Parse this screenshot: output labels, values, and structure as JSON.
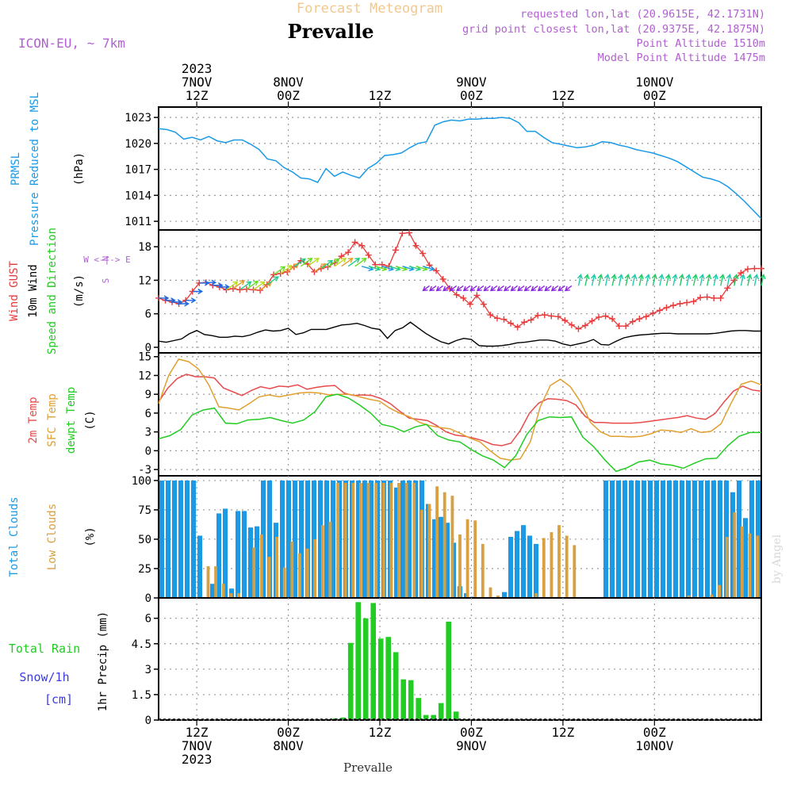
{
  "header": {
    "product": "Forecast Meteogram",
    "station": "Prevalle",
    "model": "ICON-EU, ~ 7km",
    "requested": "requested lon,lat (20.9615E, 42.1731N)",
    "gridpoint": "grid point closest lon,lat (20.9375E, 42.1875N)",
    "point_alt": "Point Altitude 1510m",
    "model_alt": "Model Point Altitude 1475m",
    "credit": "by Angel",
    "footer_station": "Prevalle"
  },
  "colors": {
    "pressure": "#1a9ae6",
    "gust": "#e83a3a",
    "wind": "#000000",
    "t2m": "#e84a4a",
    "sfc": "#e0a030",
    "dew": "#22cc22",
    "total_cloud": "#1a9ae6",
    "low_cloud": "#d8a040",
    "rain": "#22cc22",
    "snow": "#3a3ae8",
    "purple": "#b060d0",
    "ylabel": "#e0c080"
  },
  "chart_data": {
    "type": "meteogram",
    "time_axis": {
      "hours_from_start": "hourly from 07 Nov 2023 07Z to 10 Nov 2023 13Z (79 steps)",
      "top_ticks": [
        {
          "hour": 5,
          "line1": "2023",
          "line2": "7NOV",
          "line3": "12Z"
        },
        {
          "hour": 17,
          "line1": "",
          "line2": "8NOV",
          "line3": "00Z"
        },
        {
          "hour": 29,
          "line1": "",
          "line2": "",
          "line3": "12Z"
        },
        {
          "hour": 41,
          "line1": "",
          "line2": "9NOV",
          "line3": "00Z"
        },
        {
          "hour": 53,
          "line1": "",
          "line2": "",
          "line3": "12Z"
        },
        {
          "hour": 65,
          "line1": "",
          "line2": "10NOV",
          "line3": "00Z"
        }
      ],
      "bottom_ticks": [
        {
          "hour": 5,
          "line1": "12Z",
          "line2": "7NOV",
          "line3": "2023"
        },
        {
          "hour": 17,
          "line1": "00Z",
          "line2": "8NOV",
          "line3": ""
        },
        {
          "hour": 29,
          "line1": "12Z",
          "line2": "",
          "line3": ""
        },
        {
          "hour": 41,
          "line1": "00Z",
          "line2": "9NOV",
          "line3": ""
        },
        {
          "hour": 53,
          "line1": "12Z",
          "line2": "",
          "line3": ""
        },
        {
          "hour": 65,
          "line1": "00Z",
          "line2": "10NOV",
          "line3": ""
        }
      ],
      "start_hour": 0,
      "end_hour": 79
    },
    "panels": [
      {
        "id": "pressure",
        "ylim": [
          1010,
          1024.2
        ],
        "yticks": [
          1011,
          1014,
          1017,
          1020,
          1023
        ],
        "labels": [
          "PRMSL",
          "Pressure Reduced to MSL",
          "(hPa)"
        ],
        "series": [
          {
            "name": "PRMSL",
            "values": [
              1021.7,
              1021.6,
              1021.3,
              1020.5,
              1020.7,
              1020.4,
              1020.8,
              1020.3,
              1020.1,
              1020.4,
              1020.4,
              1019.9,
              1019.3,
              1018.2,
              1018,
              1017.2,
              1016.7,
              1016,
              1015.9,
              1015.5,
              1017.1,
              1016.2,
              1016.7,
              1016.3,
              1016,
              1017.1,
              1017.7,
              1018.6,
              1018.7,
              1018.9,
              1019.5,
              1020,
              1020.2,
              1022.1,
              1022.5,
              1022.7,
              1022.6,
              1022.8,
              1022.8,
              1022.9,
              1022.9,
              1023,
              1022.9,
              1022.4,
              1021.4,
              1021.4,
              1020.7,
              1020.1,
              1019.9,
              1019.7,
              1019.5,
              1019.6,
              1019.8,
              1020.2,
              1020.1,
              1019.8,
              1019.6,
              1019.3,
              1019.1,
              1018.9,
              1018.6,
              1018.3,
              1017.9,
              1017.3,
              1016.7,
              1016.1,
              1015.9,
              1015.6,
              1015,
              1014.2,
              1013.3,
              1012.3,
              1011.3
            ]
          }
        ]
      },
      {
        "id": "wind",
        "ylim": [
          -1,
          21
        ],
        "yticks": [
          0,
          6,
          12,
          18
        ],
        "labels": [
          "Wind GUST",
          "10m Wind",
          "Speed and Direction",
          "(m/s)"
        ],
        "compass": [
          "N",
          "W <-|-> E",
          "S"
        ],
        "series": [
          {
            "name": "Wind GUST",
            "values": [
              8.8,
              8.4,
              8.1,
              7.8,
              8.4,
              10,
              11.5,
              11.6,
              11.1,
              10.8,
              10.3,
              10.5,
              10.3,
              10.4,
              10.3,
              10.2,
              11.2,
              13,
              13.2,
              13.5,
              14.4,
              15.5,
              14.9,
              13.5,
              14.1,
              14.4,
              15.1,
              16.3,
              17,
              18.8,
              18.2,
              16.5,
              14.8,
              14.8,
              14.5,
              17.4,
              20.4,
              20.5,
              18.2,
              16.8,
              14.7,
              13.7,
              12.2,
              10.5,
              9.4,
              8.8,
              7.7,
              9.3,
              7.7,
              5.8,
              5.2,
              5,
              4.3,
              3.6,
              4.5,
              4.9,
              5.7,
              5.8,
              5.6,
              5.5,
              4.8,
              4,
              3.3,
              3.9,
              4.7,
              5.4,
              5.6,
              5.1,
              3.8,
              3.8,
              4.6,
              5.1,
              5.5,
              6.1,
              6.6,
              7.1,
              7.5,
              7.8,
              8,
              8.2,
              8.9,
              9,
              8.8,
              8.8,
              10.6,
              12,
              13.3,
              14,
              14.1,
              14.1
            ]
          },
          {
            "name": "10m Wind",
            "values": [
              1.1,
              0.9,
              1.2,
              1.5,
              2.4,
              3,
              2.3,
              2.1,
              1.8,
              1.8,
              2,
              1.9,
              2.2,
              2.7,
              3.1,
              2.9,
              3,
              3.4,
              2.3,
              2.6,
              3.2,
              3.2,
              3.2,
              3.6,
              4,
              4.1,
              4.3,
              3.9,
              3.4,
              3.2,
              1.6,
              3,
              3.5,
              4.5,
              3.5,
              2.5,
              1.7,
              1,
              0.6,
              1.2,
              1.6,
              1.4,
              0.3,
              0.2,
              0.2,
              0.3,
              0.5,
              0.8,
              0.9,
              1.1,
              1.3,
              1.3,
              1.1,
              0.6,
              0.3,
              0.6,
              0.9,
              1.4,
              0.5,
              0.4,
              1.1,
              1.7,
              2,
              2.2,
              2.3,
              2.4,
              2.5,
              2.5,
              2.4,
              2.4,
              2.4,
              2.4,
              2.4,
              2.5,
              2.7,
              2.9,
              3,
              3,
              2.9,
              2.9
            ]
          }
        ]
      },
      {
        "id": "temp",
        "ylim": [
          -4,
          15.6
        ],
        "yticks": [
          -3,
          0,
          3,
          6,
          9,
          12,
          15
        ],
        "labels": [
          "2m Temp",
          "SFC Temp",
          "dewpt Temp",
          "(C)"
        ],
        "series": [
          {
            "name": "2m Temp",
            "values": [
              7.8,
              10,
              11.5,
              12.2,
              11.8,
              11.8,
              11.6,
              10,
              9.4,
              8.8,
              9.6,
              10.2,
              9.9,
              10.3,
              10.2,
              10.5,
              9.8,
              10.1,
              10.3,
              10.4,
              9.2,
              8.8,
              8.9,
              8.8,
              8.3,
              7.5,
              6.3,
              5.2,
              5,
              4.8,
              4,
              3,
              2.5,
              2.3,
              2,
              1.6,
              1,
              0.8,
              1.2,
              3.2,
              6,
              7.6,
              8.3,
              8.2,
              8,
              7.3,
              5.5,
              4.5,
              4.5,
              4.4,
              4.4,
              4.4,
              4.5,
              4.7,
              4.9,
              5.1,
              5.3,
              5.6,
              5.2,
              5,
              5.9,
              7.8,
              9.5,
              10.3,
              9.7,
              9.5
            ]
          },
          {
            "name": "SFC Temp",
            "values": [
              7.5,
              12,
              14.6,
              14.2,
              13,
              10.5,
              7,
              6.8,
              6.5,
              7.5,
              8.6,
              8.9,
              8.6,
              8.9,
              9.2,
              9.3,
              9.2,
              8.9,
              9,
              9,
              8.6,
              8.2,
              7.9,
              6.8,
              6,
              5.4,
              4.5,
              4,
              3.7,
              3.5,
              2.8,
              2,
              1.4,
              0,
              -1.2,
              -1.5,
              -1.3,
              1.4,
              7,
              10.4,
              11.4,
              10.2,
              7.8,
              4.5,
              3,
              2.3,
              2.3,
              2.2,
              2.3,
              2.7,
              3.3,
              3.2,
              2.9,
              3.5,
              2.9,
              3.1,
              4.3,
              7.6,
              10.6,
              11.1,
              10.5
            ]
          },
          {
            "name": "dewpt Temp",
            "values": [
              1.9,
              2.4,
              3.4,
              5.7,
              6.5,
              6.8,
              4.4,
              4.3,
              4.9,
              5,
              5.3,
              4.8,
              4.4,
              4.9,
              6.2,
              8.6,
              9,
              8.4,
              7.3,
              6,
              4.2,
              3.8,
              3,
              3.8,
              4.2,
              2.4,
              1.7,
              1.4,
              0.2,
              -0.8,
              -1.5,
              -2.7,
              -0.8,
              2.6,
              4.8,
              5.4,
              5.3,
              5.4,
              2.2,
              0.6,
              -1.5,
              -3.3,
              -2.7,
              -1.8,
              -1.5,
              -2.1,
              -2.3,
              -2.8,
              -2,
              -1.3,
              -1.2,
              0.8,
              2.3,
              2.9,
              2.9
            ]
          }
        ]
      },
      {
        "id": "clouds",
        "ylim": [
          0,
          104
        ],
        "yticks": [
          0,
          25,
          50,
          75,
          100
        ],
        "labels": [
          "Total Clouds",
          "Low Clouds",
          "(%)"
        ],
        "series": [
          {
            "name": "Total Clouds",
            "values": [
              100,
              100,
              100,
              100,
              100,
              100,
              53,
              0,
              12,
              72,
              76,
              8,
              74,
              74,
              60,
              61,
              100,
              100,
              64,
              100,
              100,
              100,
              100,
              100,
              100,
              100,
              100,
              100,
              100,
              100,
              100,
              100,
              100,
              100,
              100,
              100,
              100,
              94,
              100,
              100,
              100,
              100,
              80,
              67,
              69,
              64,
              47,
              10,
              4,
              1,
              0,
              0,
              0,
              0,
              5,
              52,
              57,
              62,
              53,
              46,
              0,
              0,
              0,
              0,
              0,
              0,
              0,
              0,
              0,
              0,
              100,
              100,
              100,
              100,
              100,
              100,
              100,
              100,
              100,
              100,
              100,
              100,
              100,
              100,
              100,
              100,
              100,
              100,
              100,
              100,
              90,
              100,
              68,
              100,
              100
            ]
          },
          {
            "name": "Low Clouds",
            "values": [
              0,
              0,
              0,
              0,
              0,
              0,
              27,
              27,
              12,
              4,
              4,
              0,
              43,
              54,
              35,
              52,
              26,
              48,
              38,
              42,
              50,
              62,
              65,
              98,
              98,
              98,
              98,
              98,
              98,
              98,
              98,
              98,
              98,
              98,
              75,
              80,
              95,
              90,
              87,
              54,
              67,
              66,
              46,
              9,
              2,
              0,
              0,
              0,
              0,
              4,
              51,
              56,
              62,
              53,
              45,
              0,
              0,
              0,
              0,
              0,
              0,
              0,
              0,
              0,
              0,
              0,
              0,
              0,
              0,
              2,
              1,
              1,
              3,
              11,
              52,
              73,
              61,
              55,
              53
            ]
          }
        ]
      },
      {
        "id": "precip",
        "ylim": [
          0,
          7.2
        ],
        "yticks": [
          0,
          1.5,
          3,
          4.5,
          6
        ],
        "labels": [
          "Total Rain",
          "Snow/1h",
          "[cm]",
          "1hr Precip (mm)"
        ],
        "series": [
          {
            "name": "Total Rain",
            "values": [
              0,
              0,
              0,
              0,
              0,
              0,
              0,
              0,
              0,
              0,
              0,
              0,
              0,
              0,
              0,
              0,
              0,
              0,
              0,
              0,
              0,
              0,
              0,
              0.1,
              0.15,
              4.55,
              6.95,
              6,
              6.9,
              4.8,
              4.9,
              4,
              2.4,
              2.35,
              1.3,
              0.3,
              0.3,
              1,
              5.8,
              0.5,
              0,
              0,
              0,
              0,
              0,
              0,
              0,
              0,
              0,
              0,
              0,
              0,
              0,
              0,
              0,
              0,
              0,
              0,
              0,
              0,
              0,
              0,
              0,
              0,
              0,
              0,
              0,
              0,
              0,
              0,
              0,
              0,
              0,
              0,
              0,
              0,
              0,
              0,
              0,
              0
            ]
          }
        ]
      }
    ]
  }
}
